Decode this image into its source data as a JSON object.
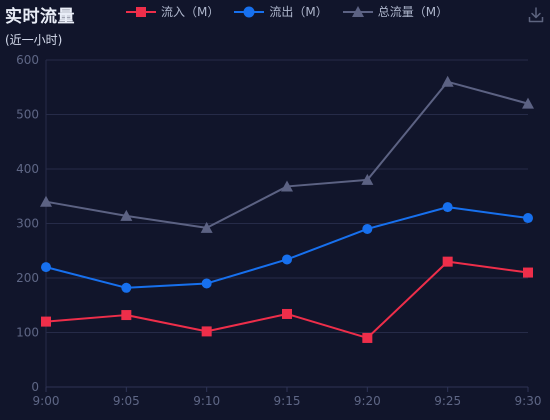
{
  "header": {
    "title": "实时流量",
    "subtitle": "(近一小时)"
  },
  "toolbar": {
    "download_icon": "download-icon"
  },
  "colors": {
    "background": "#11152b",
    "grid": "#262b48",
    "axis_text": "#5e6685",
    "inflow": "#ee2e4a",
    "outflow": "#1770ee",
    "total": "#5c6283"
  },
  "chart_data": {
    "type": "line",
    "title": "实时流量",
    "subtitle": "(近一小时)",
    "xlabel": "",
    "ylabel": "",
    "categories": [
      "9:00",
      "9:05",
      "9:10",
      "9:15",
      "9:20",
      "9:25",
      "9:30"
    ],
    "ylim": [
      0,
      600
    ],
    "yticks": [
      0,
      100,
      200,
      300,
      400,
      500,
      600
    ],
    "grid": true,
    "legend_position": "top",
    "series": [
      {
        "name": "流入（M）",
        "marker": "square",
        "color": "#ee2e4a",
        "values": [
          120,
          132,
          102,
          134,
          90,
          230,
          210
        ]
      },
      {
        "name": "流出（M）",
        "marker": "circle",
        "color": "#1770ee",
        "values": [
          220,
          182,
          190,
          234,
          290,
          330,
          310
        ]
      },
      {
        "name": "总流量（M）",
        "marker": "triangle",
        "color": "#5c6283",
        "values": [
          340,
          314,
          292,
          368,
          380,
          560,
          520
        ]
      }
    ]
  }
}
